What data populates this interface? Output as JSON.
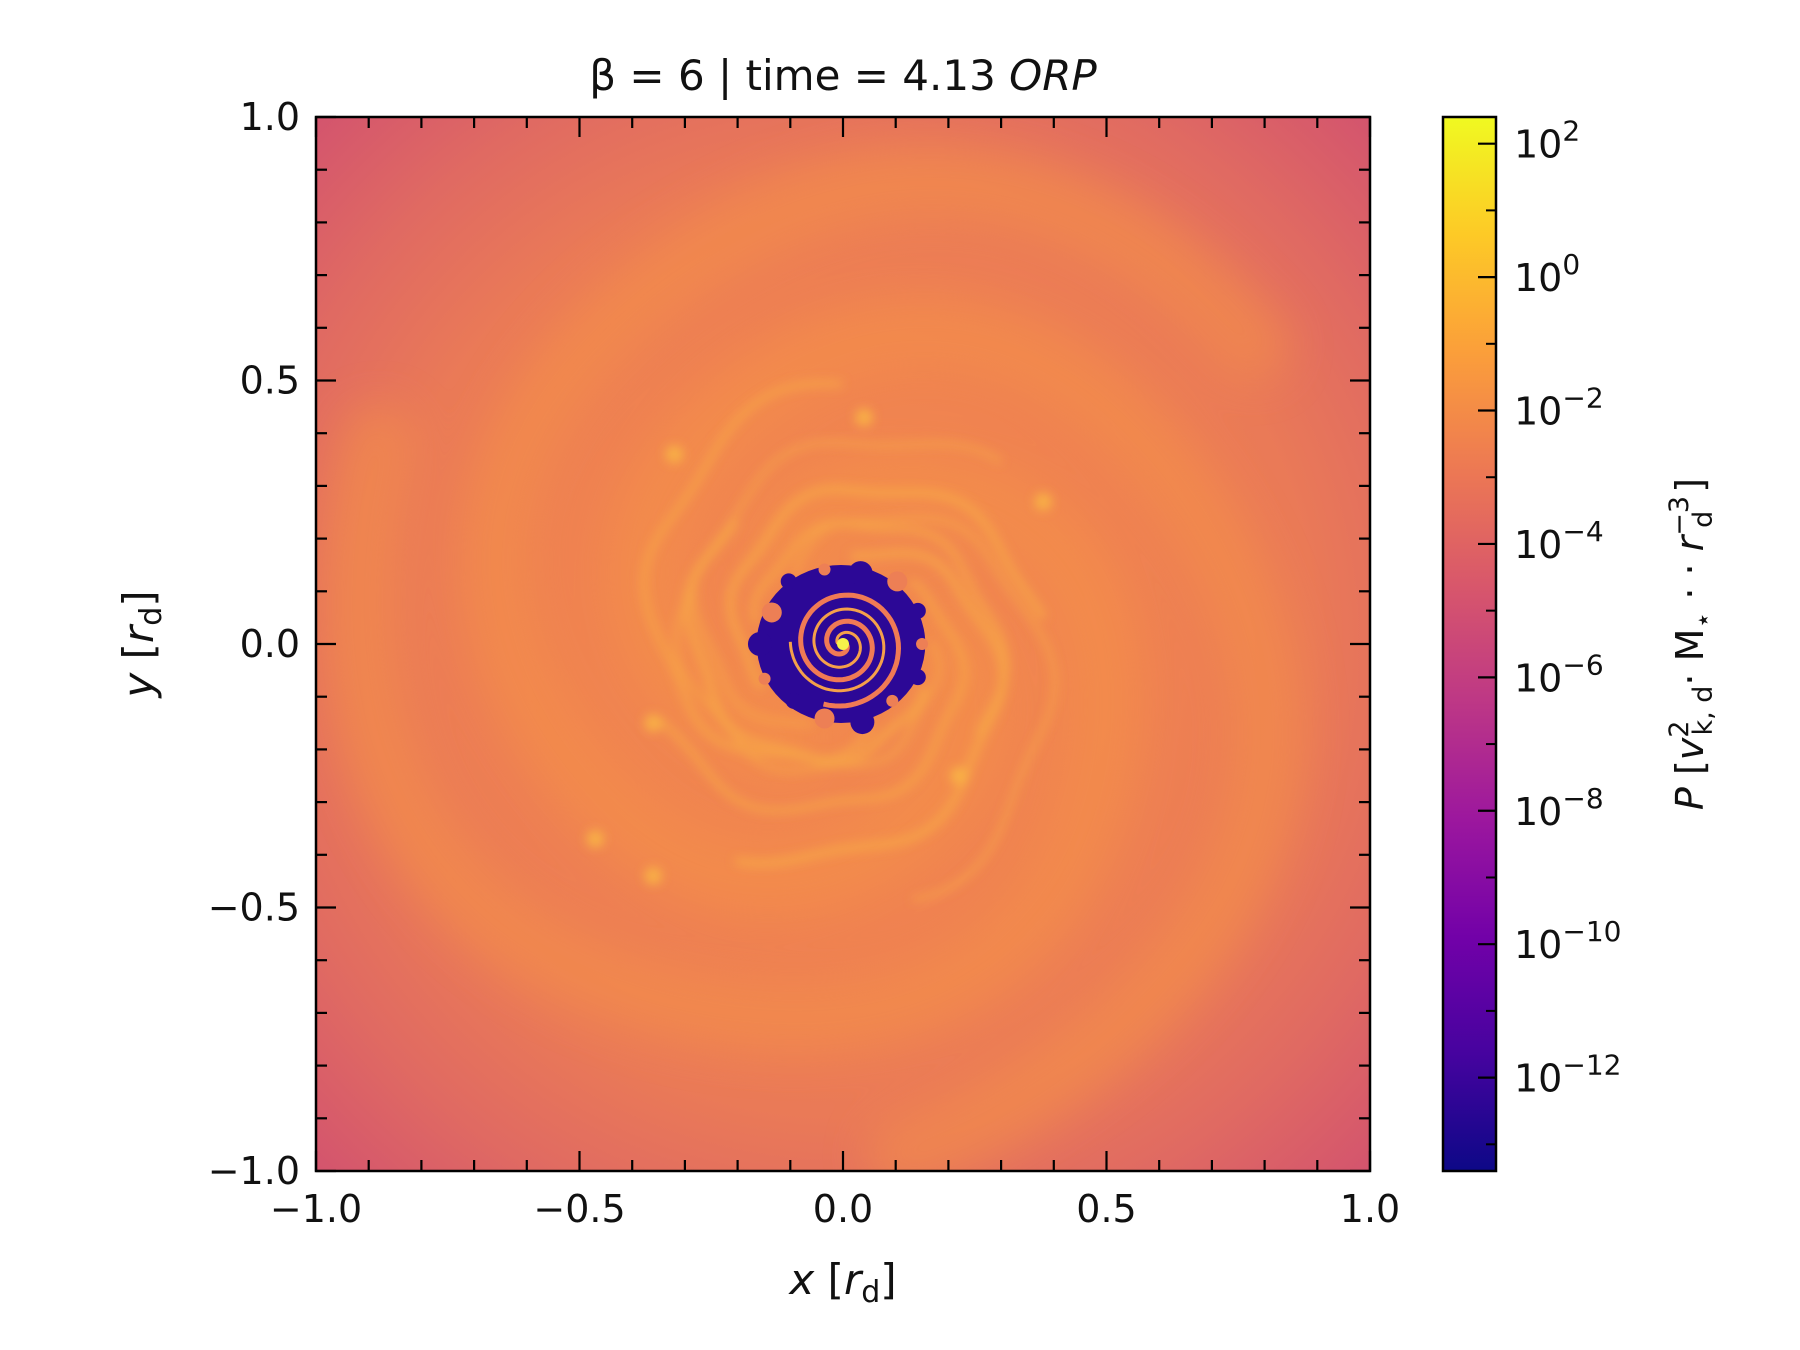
{
  "chart_data": {
    "type": "heatmap",
    "title": "β = 6 | time = 4.13 ORP",
    "title_parts": {
      "prefix": "β = 6 | time = 4.13 ",
      "unit": "ORP"
    },
    "xlabel": {
      "var": "x",
      "unit": "r",
      "sub": "d"
    },
    "ylabel": {
      "var": "y",
      "unit": "r",
      "sub": "d"
    },
    "xlim": [
      -1.0,
      1.0
    ],
    "ylim": [
      -1.0,
      1.0
    ],
    "x_ticks": [
      -1.0,
      -0.5,
      0.0,
      0.5,
      1.0
    ],
    "x_tick_labels": [
      "−1.0",
      "−0.5",
      "0.0",
      "0.5",
      "1.0"
    ],
    "y_ticks": [
      -1.0,
      -0.5,
      0.0,
      0.5,
      1.0
    ],
    "y_tick_labels": [
      "−1.0",
      "−0.5",
      "0.0",
      "0.5",
      "1.0"
    ],
    "grid": false,
    "colormap": "plasma",
    "colorbar": {
      "scale": "log",
      "range_log10": [
        -13.4,
        2.4
      ],
      "ticks_log10": [
        2,
        0,
        -2,
        -4,
        -6,
        -8,
        -10,
        -12
      ],
      "tick_base": "10",
      "tick_exponents": [
        "2",
        "0",
        "−2",
        "−4",
        "−6",
        "−8",
        "−10",
        "−12"
      ],
      "label": "P [v²k,d · M⋆ · r⁻³d]"
    },
    "colors": {
      "plasma": [
        "#0d0887",
        "#46039f",
        "#7201a8",
        "#9c179e",
        "#bd3786",
        "#d8576b",
        "#ed7953",
        "#fb9f3a",
        "#fdca26",
        "#f0f921"
      ],
      "inner_gap": "#2c0896",
      "disk": "#ed7f55",
      "corner": "#d4566f",
      "filament": "#f7a548",
      "core": "#f6f14a"
    },
    "description_features": {
      "inner_cavity_radius": 0.17,
      "spiral_arms": 3
    }
  }
}
